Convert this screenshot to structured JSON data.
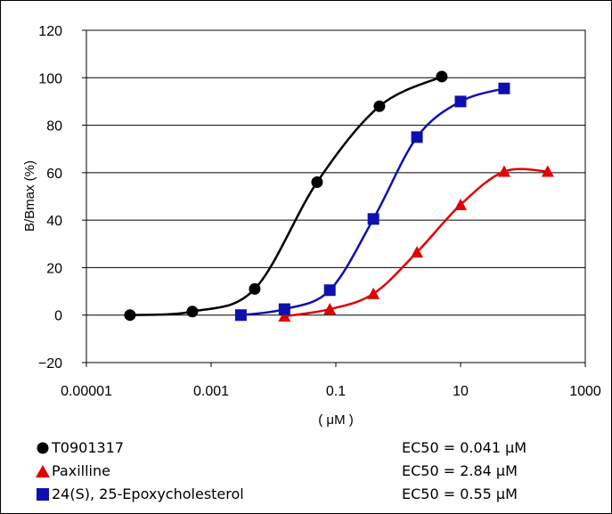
{
  "chart_data": {
    "type": "scatter",
    "title": "",
    "xlabel": "( μM )",
    "ylabel": "B/Bmax (%)",
    "x_scale": "log",
    "xlim": [
      1e-05,
      1000
    ],
    "ylim": [
      -20,
      120
    ],
    "x_ticks": [
      "0.00001",
      "0.001",
      "0.1",
      "10",
      "1000"
    ],
    "y_ticks": [
      "120",
      "100",
      "80",
      "60",
      "40",
      "20",
      "0",
      "−20"
    ],
    "grid": "horizontal",
    "legend_position": "bottom",
    "series": [
      {
        "name": "T0901317",
        "ec50_label": "EC50  =  0.041 μM",
        "color": "#000000",
        "marker": "circle",
        "x": [
          5e-05,
          0.0005,
          0.005,
          0.05,
          0.5,
          5
        ],
        "y": [
          0,
          1.5,
          11,
          56,
          88,
          100.5
        ]
      },
      {
        "name": "Paxilline",
        "ec50_label": "EC50  =  2.84 μM",
        "color": "#e00000",
        "marker": "triangle",
        "x": [
          0.015,
          0.08,
          0.4,
          2,
          10,
          50,
          250
        ],
        "y": [
          -0.5,
          2.5,
          9,
          26.5,
          46.5,
          60.5,
          60.5
        ]
      },
      {
        "name": "24(S), 25-Epoxycholesterol",
        "ec50_label": "EC50  =  0.55 μM",
        "color": "#1010b0",
        "marker": "square",
        "x": [
          0.003,
          0.015,
          0.08,
          0.4,
          2,
          10,
          50
        ],
        "y": [
          0,
          2.5,
          10.5,
          40.5,
          75,
          90,
          95.5
        ]
      }
    ]
  }
}
